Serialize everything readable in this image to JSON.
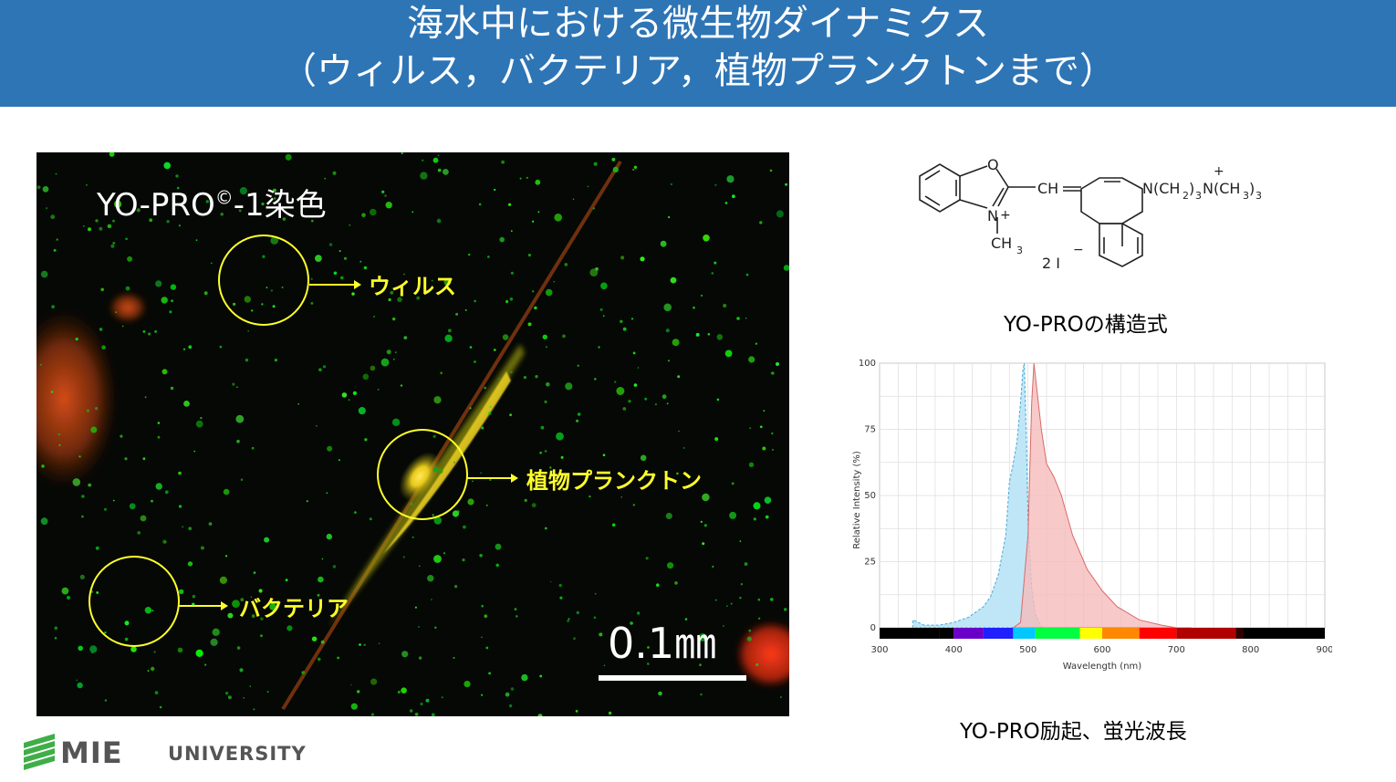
{
  "header": {
    "title_line1": "海水中における微生物ダイナミクス",
    "title_line2": "（ウィルス，バクテリア，植物プランクトンまで）",
    "bg_color": "#2e75b6"
  },
  "micrograph": {
    "stain_label_prefix": "YO-PRO",
    "stain_label_sup": "©",
    "stain_label_suffix": "-1染色",
    "annotations": {
      "virus": "ウィルス",
      "phytoplankton": "植物プランクトン",
      "bacteria": "バクテリア"
    },
    "annotation_color": "#ffff2a",
    "scale_label": "0.1㎜"
  },
  "structure": {
    "caption": "YO-PROの構造式",
    "atom_O": "O",
    "atom_CH": "CH",
    "atom_N": "N",
    "n_plus": "+",
    "methyl": "CH",
    "methyl_sub": "3",
    "chain": "N(CH",
    "chain_sub1": "2",
    "chain_sub2": "3",
    "chain_end": "N(CH",
    "chain_sub3": "3",
    "chain_sub4": "3",
    "chain_close": ")",
    "quat_plus": "+",
    "iodide": "2 I",
    "iodide_minus": "−"
  },
  "spectrum": {
    "caption": "YO-PRO励起、蛍光波長",
    "ylabel": "Relative Intensity (%)",
    "xlabel": "Wavelength (nm)",
    "ytick_labels": [
      "0",
      "25",
      "50",
      "75",
      "100"
    ],
    "xtick_labels": [
      "300",
      "400",
      "500",
      "600",
      "700",
      "800",
      "900"
    ],
    "excitation_color": "#bfe6f6",
    "emission_color": "#f6bcbc"
  },
  "chart_data": {
    "type": "area",
    "xlabel": "Wavelength (nm)",
    "ylabel": "Relative Intensity (%)",
    "xlim": [
      300,
      900
    ],
    "ylim": [
      0,
      100
    ],
    "grid": true,
    "series": [
      {
        "x": [
          345,
          360,
          380,
          400,
          420,
          440,
          450,
          460,
          470,
          475,
          480,
          485,
          490,
          493,
          495,
          498,
          500,
          505,
          510,
          515,
          520
        ],
        "values": [
          3,
          1,
          1,
          2,
          4,
          8,
          12,
          20,
          35,
          55,
          62,
          70,
          85,
          97,
          100,
          70,
          40,
          15,
          5,
          2,
          0
        ]
      },
      {
        "x": [
          480,
          490,
          500,
          505,
          508,
          512,
          518,
          525,
          535,
          545,
          560,
          580,
          600,
          620,
          650,
          680,
          700,
          720
        ],
        "values": [
          0,
          2,
          35,
          85,
          100,
          90,
          75,
          62,
          57,
          50,
          35,
          22,
          14,
          8,
          3,
          1,
          0,
          0
        ]
      }
    ]
  },
  "logo": {
    "brand": "MIE",
    "brand_suffix": "UNIVERSITY"
  }
}
